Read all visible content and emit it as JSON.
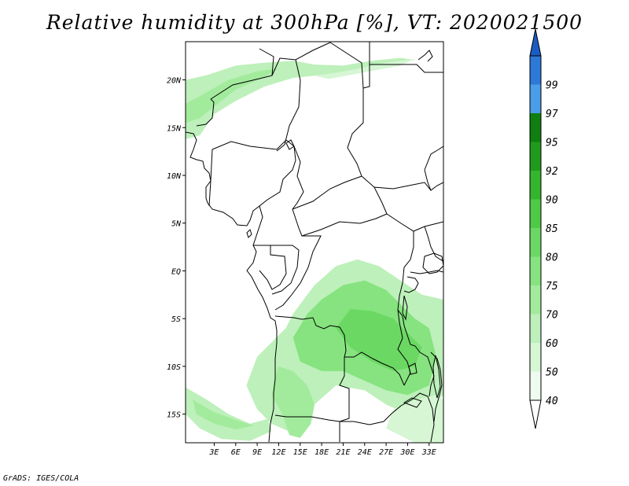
{
  "title": "Relative humidity at 300hPa [%], VT: 2020021500",
  "credit": "GrADS: IGES/COLA",
  "map": {
    "lon_range": [
      -1,
      35
    ],
    "lat_range": [
      -18,
      24
    ],
    "lat_ticks": [
      {
        "lat": 20,
        "label": "20N"
      },
      {
        "lat": 15,
        "label": "15N"
      },
      {
        "lat": 10,
        "label": "10N"
      },
      {
        "lat": 5,
        "label": "5N"
      },
      {
        "lat": 0,
        "label": "EQ"
      },
      {
        "lat": -5,
        "label": "5S"
      },
      {
        "lat": -10,
        "label": "10S"
      },
      {
        "lat": -15,
        "label": "15S"
      }
    ],
    "lon_ticks": [
      {
        "lon": 3,
        "label": "3E"
      },
      {
        "lon": 6,
        "label": "6E"
      },
      {
        "lon": 9,
        "label": "9E"
      },
      {
        "lon": 12,
        "label": "12E"
      },
      {
        "lon": 15,
        "label": "15E"
      },
      {
        "lon": 18,
        "label": "18E"
      },
      {
        "lon": 21,
        "label": "21E"
      },
      {
        "lon": 24,
        "label": "24E"
      },
      {
        "lon": 27,
        "label": "27E"
      },
      {
        "lon": 30,
        "label": "30E"
      },
      {
        "lon": 33,
        "label": "33E"
      }
    ]
  },
  "colorbar": {
    "levels": [
      {
        "label": "40",
        "color": "#eefbee"
      },
      {
        "label": "50",
        "color": "#d6f6d4"
      },
      {
        "label": "60",
        "color": "#bdf0ba"
      },
      {
        "label": "70",
        "color": "#a2eb9c"
      },
      {
        "label": "75",
        "color": "#86e37f"
      },
      {
        "label": "80",
        "color": "#6bd863"
      },
      {
        "label": "85",
        "color": "#4fca47"
      },
      {
        "label": "90",
        "color": "#33b52d"
      },
      {
        "label": "92",
        "color": "#1f9a1d"
      },
      {
        "label": "95",
        "color": "#0e7f10"
      },
      {
        "label": "97",
        "color": "#4a9de8"
      },
      {
        "label": "99",
        "color": "#2c79d8"
      }
    ],
    "top_color": "#1a5cc4",
    "bottom_color": "#ffffff"
  },
  "humidity_regions": [
    {
      "name": "sahel-band",
      "level": "60",
      "pts": [
        [
          -1,
          20
        ],
        [
          2,
          20.5
        ],
        [
          6,
          21.5
        ],
        [
          10,
          21.8
        ],
        [
          14,
          22
        ],
        [
          17,
          21.6
        ],
        [
          21,
          21.5
        ],
        [
          25,
          22
        ],
        [
          29,
          22.3
        ],
        [
          31,
          22.1
        ],
        [
          26,
          21.2
        ],
        [
          20,
          20.7
        ],
        [
          14,
          20.2
        ],
        [
          10,
          19.3
        ],
        [
          6,
          17.8
        ],
        [
          3,
          16.4
        ],
        [
          1,
          14.2
        ],
        [
          -1,
          13.8
        ]
      ]
    },
    {
      "name": "sahel-band-core",
      "level": "70",
      "pts": [
        [
          -1,
          17.5
        ],
        [
          1.5,
          18.5
        ],
        [
          5,
          20
        ],
        [
          9,
          20.9
        ],
        [
          12,
          21.2
        ],
        [
          10,
          20.3
        ],
        [
          6,
          19
        ],
        [
          3,
          17.2
        ],
        [
          1,
          16
        ],
        [
          -1,
          15.5
        ]
      ]
    },
    {
      "name": "sahara-east",
      "level": "50",
      "pts": [
        [
          17,
          20.4
        ],
        [
          22,
          21
        ],
        [
          27,
          21.8
        ],
        [
          31,
          22.2
        ],
        [
          29,
          21.5
        ],
        [
          24,
          20.8
        ],
        [
          19,
          20.1
        ]
      ]
    },
    {
      "name": "central-africa-large",
      "level": "60",
      "pts": [
        [
          14,
          -4.5
        ],
        [
          17,
          -1.5
        ],
        [
          20,
          0.5
        ],
        [
          23,
          1.2
        ],
        [
          26,
          0.5
        ],
        [
          29,
          -1
        ],
        [
          32,
          -2.5
        ],
        [
          35,
          -3
        ],
        [
          35,
          -13
        ],
        [
          33,
          -14.5
        ],
        [
          30,
          -15
        ],
        [
          27,
          -14
        ],
        [
          24,
          -12.5
        ],
        [
          20,
          -12
        ],
        [
          17,
          -14
        ],
        [
          14,
          -17
        ],
        [
          11,
          -16
        ],
        [
          9,
          -14.5
        ],
        [
          7.5,
          -12
        ],
        [
          9,
          -9
        ],
        [
          11,
          -7.5
        ],
        [
          13,
          -6
        ]
      ]
    },
    {
      "name": "central-africa-core",
      "level": "75",
      "pts": [
        [
          18,
          -3
        ],
        [
          21,
          -1.5
        ],
        [
          24,
          -1
        ],
        [
          27,
          -2
        ],
        [
          29,
          -3.5
        ],
        [
          31,
          -5
        ],
        [
          33,
          -6
        ],
        [
          34,
          -9
        ],
        [
          33,
          -12
        ],
        [
          30,
          -13
        ],
        [
          27,
          -12.5
        ],
        [
          24,
          -11.5
        ],
        [
          21,
          -10.5
        ],
        [
          18,
          -10.5
        ],
        [
          15,
          -9.5
        ],
        [
          14,
          -7
        ],
        [
          16,
          -4.5
        ]
      ]
    },
    {
      "name": "central-africa-peak",
      "level": "80",
      "pts": [
        [
          22,
          -4
        ],
        [
          25,
          -4.2
        ],
        [
          28,
          -5
        ],
        [
          30,
          -6.5
        ],
        [
          32,
          -8
        ],
        [
          31,
          -10
        ],
        [
          28,
          -10.5
        ],
        [
          25,
          -9.5
        ],
        [
          22,
          -8
        ],
        [
          20,
          -6
        ]
      ]
    },
    {
      "name": "angola-plume",
      "level": "70",
      "pts": [
        [
          12,
          -10
        ],
        [
          14,
          -10.5
        ],
        [
          16,
          -12
        ],
        [
          17,
          -14
        ],
        [
          16.5,
          -16
        ],
        [
          15,
          -17.5
        ],
        [
          13.5,
          -17.2
        ],
        [
          12.5,
          -15
        ],
        [
          11,
          -13
        ],
        [
          11.5,
          -11
        ]
      ]
    },
    {
      "name": "southwest-swath",
      "level": "60",
      "pts": [
        [
          -1,
          -12.2
        ],
        [
          2,
          -13.5
        ],
        [
          5,
          -15
        ],
        [
          8,
          -16
        ],
        [
          10.5,
          -15.5
        ],
        [
          11,
          -16.8
        ],
        [
          8,
          -17.8
        ],
        [
          4,
          -17.6
        ],
        [
          1,
          -16.5
        ],
        [
          -1,
          -15
        ]
      ]
    },
    {
      "name": "southwest-swath-core",
      "level": "70",
      "pts": [
        [
          0,
          -13.5
        ],
        [
          3,
          -14.8
        ],
        [
          6,
          -15.6
        ],
        [
          8.5,
          -16.2
        ],
        [
          6,
          -16.6
        ],
        [
          3,
          -16
        ],
        [
          0.5,
          -15
        ]
      ]
    },
    {
      "name": "tanzania-south",
      "level": "50",
      "pts": [
        [
          28,
          -14.5
        ],
        [
          31,
          -13.5
        ],
        [
          34,
          -13
        ],
        [
          35,
          -13.5
        ],
        [
          35,
          -18
        ],
        [
          31,
          -18
        ],
        [
          27,
          -16.5
        ]
      ]
    }
  ]
}
